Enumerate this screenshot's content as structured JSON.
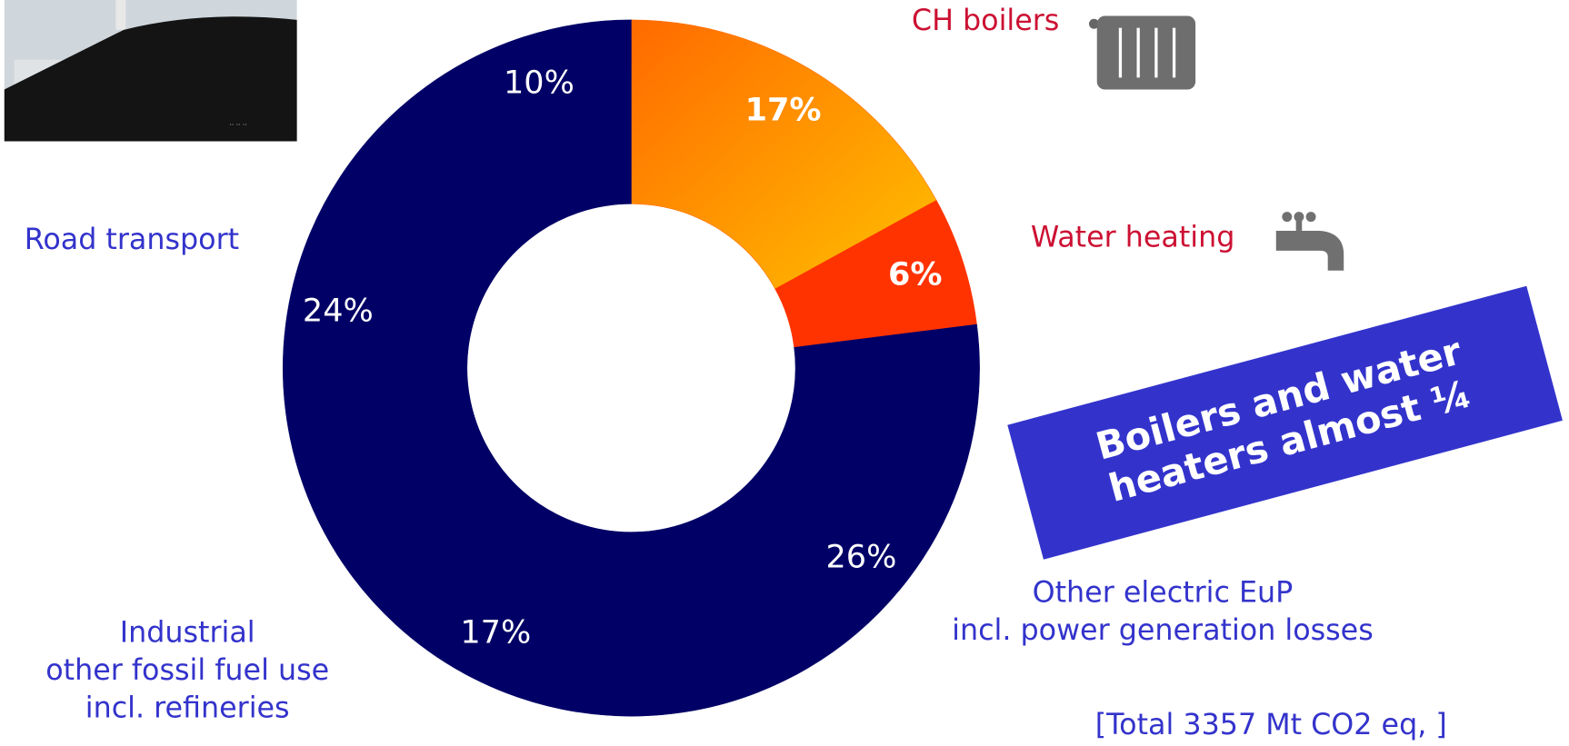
{
  "chart_data": {
    "type": "donut",
    "categories": [
      "CH boilers",
      "Water heating",
      "Other electric EuP\nincl. power generation losses",
      "Industrial\nother fossil fuel use\nincl. refineries",
      "Road transport",
      null
    ],
    "values": [
      17,
      6,
      26,
      17,
      24,
      10
    ],
    "value_labels": [
      "17%",
      "6%",
      "26%",
      "17%",
      "24%",
      "10%"
    ],
    "colors": [
      "#ff6a00",
      "#ff3300",
      "#000066",
      "#000066",
      "#000066",
      "#000066"
    ],
    "annotation": "Boilers and water heaters almost ¼",
    "note": "[Total 3357 Mt CO2 eq, ]"
  }
}
